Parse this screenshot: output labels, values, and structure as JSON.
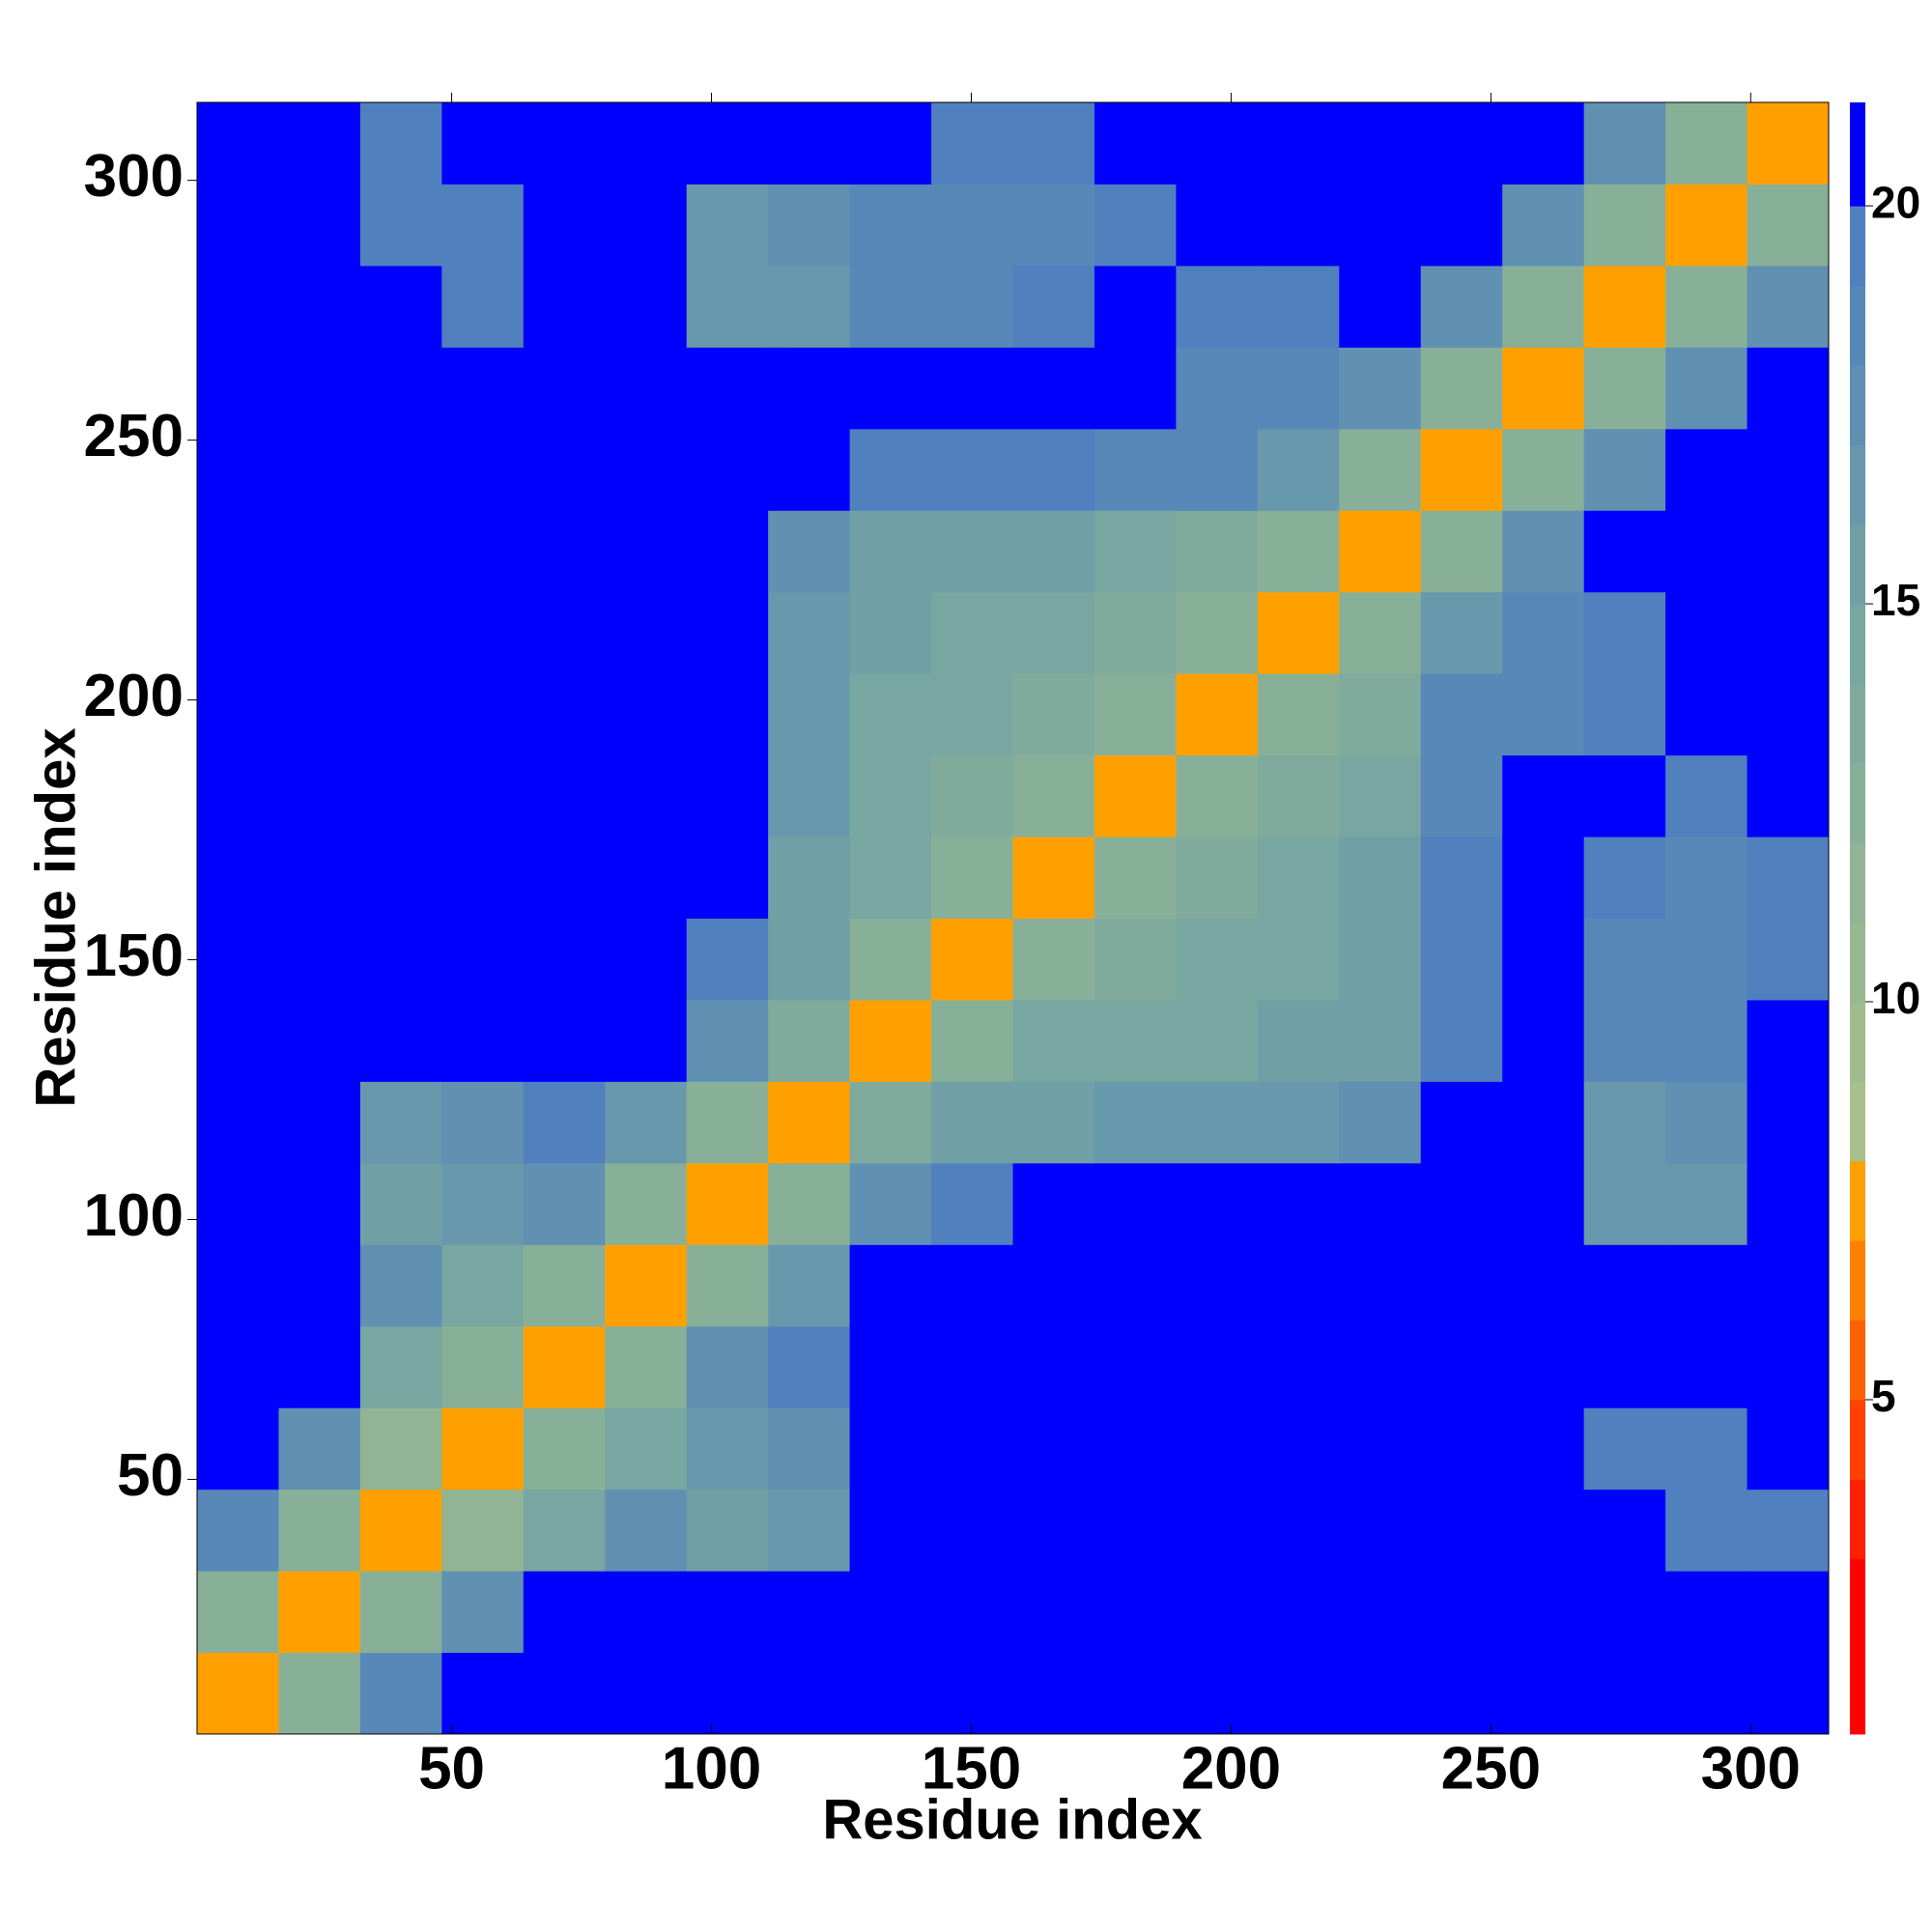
{
  "chart_data": {
    "type": "heatmap",
    "xlabel": "Residue index",
    "ylabel": "Residue index",
    "xlim": [
      1,
      315
    ],
    "ylim": [
      1,
      315
    ],
    "xticks": [
      50,
      100,
      150,
      200,
      250,
      300
    ],
    "yticks": [
      50,
      100,
      150,
      200,
      250,
      300
    ],
    "z": [
      [
        7,
        12,
        18,
        21,
        21,
        21,
        21,
        21,
        21,
        21,
        21,
        21,
        21,
        21,
        21,
        21,
        21,
        21,
        21,
        21
      ],
      [
        12,
        7,
        12,
        17,
        21,
        21,
        21,
        21,
        21,
        21,
        21,
        21,
        21,
        21,
        21,
        21,
        21,
        21,
        21,
        21
      ],
      [
        18,
        12,
        7,
        11,
        14,
        17,
        15,
        16,
        21,
        21,
        21,
        21,
        21,
        21,
        21,
        21,
        21,
        20,
        19,
        19
      ],
      [
        21,
        17,
        11,
        7,
        12,
        14,
        16,
        17,
        21,
        21,
        21,
        21,
        21,
        21,
        21,
        21,
        21,
        19,
        19,
        20
      ],
      [
        21,
        21,
        14,
        12,
        7,
        12,
        17,
        19,
        21,
        21,
        21,
        21,
        21,
        21,
        21,
        21,
        21,
        21,
        21,
        21
      ],
      [
        21,
        21,
        17,
        14,
        12,
        7,
        12,
        16,
        21,
        21,
        21,
        21,
        21,
        21,
        21,
        21,
        21,
        21,
        21,
        21
      ],
      [
        21,
        21,
        15,
        16,
        17,
        12,
        7,
        12,
        17,
        19,
        21,
        21,
        21,
        21,
        21,
        21,
        21,
        16,
        16,
        21
      ],
      [
        21,
        21,
        16,
        17,
        19,
        16,
        12,
        7,
        13,
        15,
        15,
        16,
        16,
        16,
        17,
        21,
        21,
        16,
        17,
        21
      ],
      [
        21,
        21,
        21,
        21,
        21,
        21,
        17,
        13,
        7,
        12,
        14,
        14,
        14,
        15,
        15,
        19,
        21,
        18,
        18,
        21
      ],
      [
        21,
        21,
        21,
        21,
        21,
        21,
        19,
        15,
        12,
        7,
        12,
        13,
        14,
        14,
        15,
        19,
        21,
        18,
        18,
        19
      ],
      [
        21,
        21,
        21,
        21,
        21,
        21,
        21,
        15,
        14,
        12,
        7,
        12,
        13,
        14,
        15,
        19,
        21,
        19,
        18,
        19
      ],
      [
        21,
        21,
        21,
        21,
        21,
        21,
        21,
        16,
        14,
        13,
        12,
        7,
        12,
        13,
        14,
        18,
        21,
        21,
        19,
        21
      ],
      [
        21,
        21,
        21,
        21,
        21,
        21,
        21,
        16,
        14,
        14,
        13,
        12,
        7,
        12,
        13,
        18,
        18,
        19,
        21,
        21
      ],
      [
        21,
        21,
        21,
        21,
        21,
        21,
        21,
        16,
        15,
        14,
        14,
        13,
        12,
        7,
        12,
        16,
        18,
        19,
        21,
        21
      ],
      [
        21,
        21,
        21,
        21,
        21,
        21,
        21,
        17,
        15,
        15,
        15,
        14,
        13,
        12,
        7,
        12,
        17,
        21,
        21,
        21
      ],
      [
        21,
        21,
        21,
        21,
        21,
        21,
        21,
        21,
        19,
        19,
        19,
        18,
        18,
        16,
        12,
        7,
        12,
        17,
        21,
        21
      ],
      [
        21,
        21,
        21,
        21,
        21,
        21,
        21,
        21,
        21,
        21,
        21,
        21,
        18,
        18,
        17,
        12,
        7,
        12,
        17,
        21
      ],
      [
        21,
        21,
        20,
        19,
        21,
        21,
        16,
        16,
        18,
        18,
        19,
        21,
        19,
        19,
        21,
        17,
        12,
        7,
        12,
        17
      ],
      [
        21,
        21,
        19,
        19,
        21,
        21,
        16,
        17,
        18,
        18,
        18,
        19,
        21,
        21,
        21,
        21,
        17,
        12,
        7,
        12
      ],
      [
        21,
        21,
        19,
        20,
        21,
        21,
        21,
        21,
        21,
        19,
        19,
        21,
        21,
        21,
        21,
        21,
        21,
        17,
        12,
        7
      ]
    ],
    "colorbar": {
      "lim": [
        0.8,
        21.3
      ],
      "ticks": [
        5,
        10,
        15,
        20
      ],
      "levels": [
        0.8,
        3,
        4,
        5,
        6,
        7,
        8,
        9,
        10,
        11,
        12,
        13,
        14,
        15,
        16,
        17,
        18,
        19,
        20,
        21.3
      ],
      "colors": [
        "#ff0000",
        "#ff2000",
        "#ff4000",
        "#ff6000",
        "#ff8000",
        "#ffa000",
        "#a8c08c",
        "#a0bc8e",
        "#98b890",
        "#90b494",
        "#88b098",
        "#80ab9c",
        "#78a6a0",
        "#709fa6",
        "#6898ac",
        "#6090b2",
        "#5888b8",
        "#5080be",
        "#0000ff"
      ]
    }
  }
}
